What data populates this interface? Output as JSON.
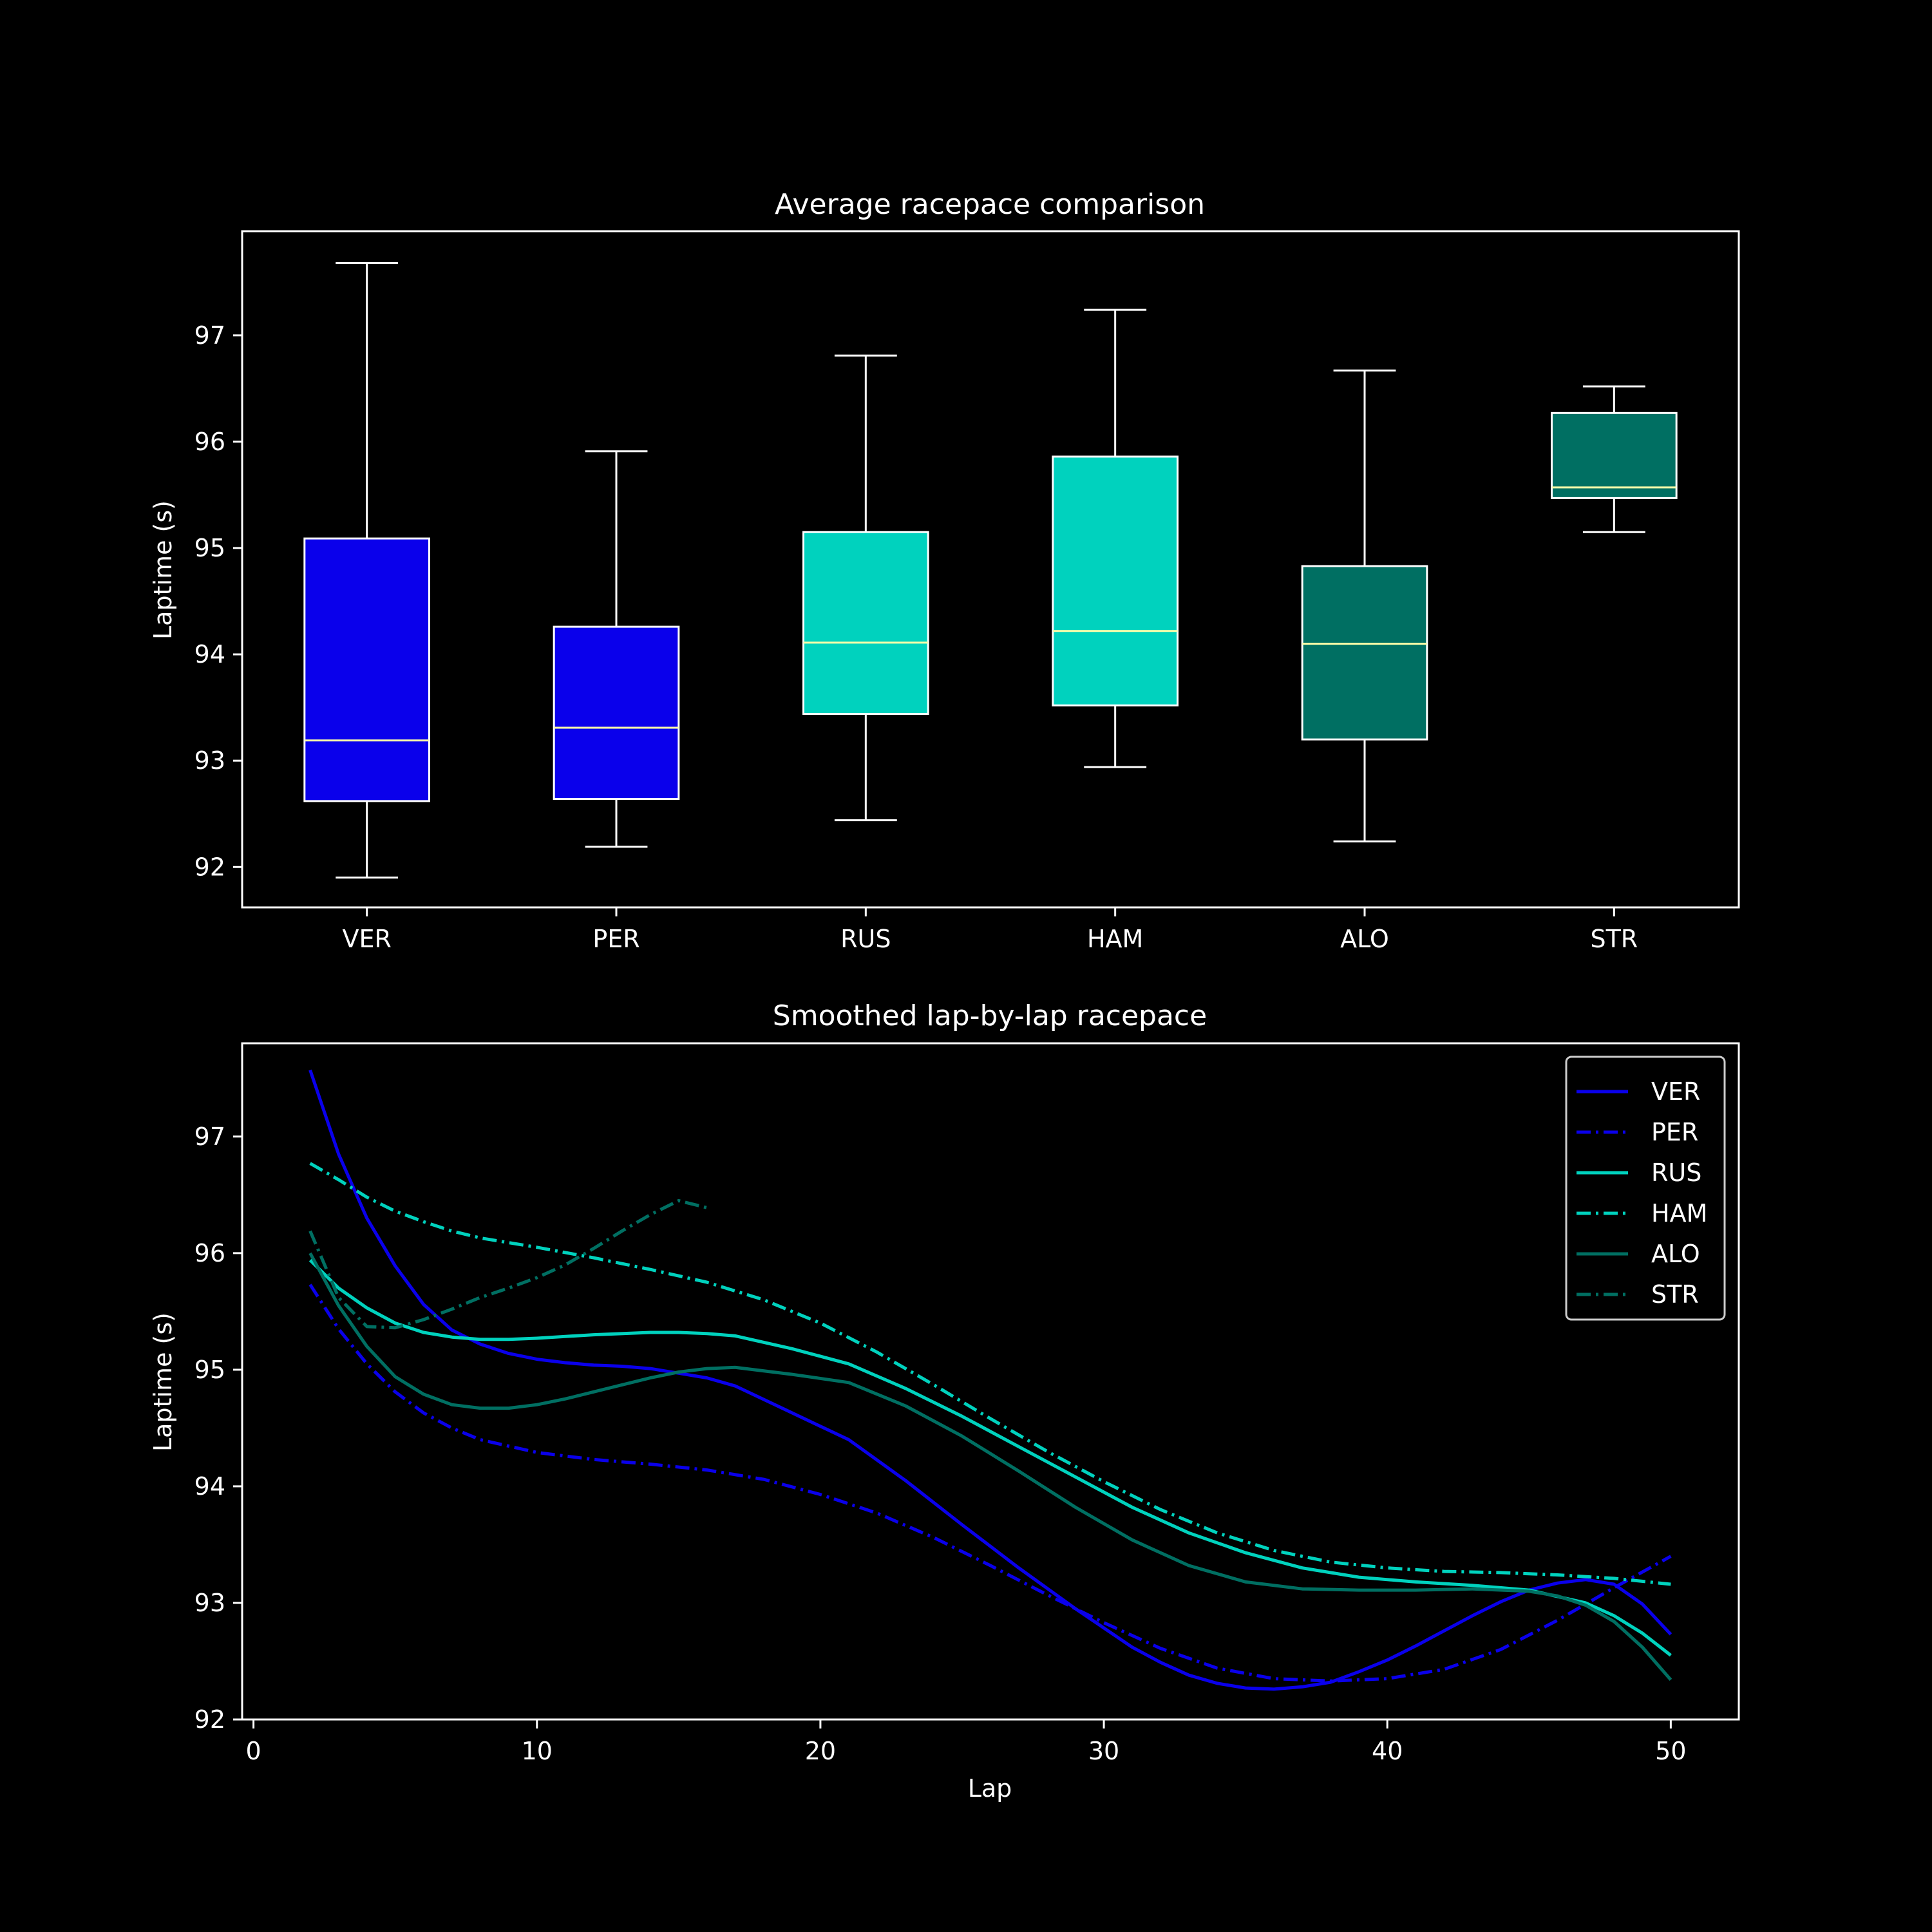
{
  "chart_data": [
    {
      "type": "box",
      "title": "Average racepace comparison",
      "xlabel": "",
      "ylabel": "Laptime (s)",
      "ylim": [
        91.62,
        97.98
      ],
      "yticks": [
        92,
        93,
        94,
        95,
        96,
        97
      ],
      "grid": false,
      "categories": [
        "VER",
        "PER",
        "RUS",
        "HAM",
        "ALO",
        "STR"
      ],
      "boxes": [
        {
          "name": "VER",
          "whisker_low": 91.9,
          "q1": 92.62,
          "median": 93.19,
          "q3": 95.09,
          "whisker_high": 97.68,
          "color": "#0a00eb"
        },
        {
          "name": "PER",
          "whisker_low": 92.19,
          "q1": 92.64,
          "median": 93.31,
          "q3": 94.26,
          "whisker_high": 95.91,
          "color": "#0a00eb"
        },
        {
          "name": "RUS",
          "whisker_low": 92.44,
          "q1": 93.44,
          "median": 94.11,
          "q3": 95.15,
          "whisker_high": 96.81,
          "color": "#00d2be"
        },
        {
          "name": "HAM",
          "whisker_low": 92.94,
          "q1": 93.52,
          "median": 94.22,
          "q3": 95.86,
          "whisker_high": 97.24,
          "color": "#00d2be"
        },
        {
          "name": "ALO",
          "whisker_low": 92.24,
          "q1": 93.2,
          "median": 94.1,
          "q3": 94.83,
          "whisker_high": 96.67,
          "color": "#006f62"
        },
        {
          "name": "STR",
          "whisker_low": 95.15,
          "q1": 95.47,
          "median": 95.57,
          "q3": 96.27,
          "whisker_high": 96.52,
          "color": "#006f62"
        }
      ],
      "box_edge_color": "#ffffff",
      "median_color": "#ffffaa"
    },
    {
      "type": "line",
      "title": "Smoothed lap-by-lap racepace",
      "xlabel": "Lap",
      "ylabel": "Laptime (s)",
      "xlim": [
        -0.4,
        52.4
      ],
      "ylim": [
        92.0,
        97.8
      ],
      "xticks": [
        0,
        10,
        20,
        30,
        40,
        50
      ],
      "yticks": [
        92,
        93,
        94,
        95,
        96,
        97
      ],
      "grid": false,
      "legend": "top-right",
      "series": [
        {
          "name": "VER",
          "color": "#0a00eb",
          "style": "solid",
          "x": [
            2,
            3,
            4,
            5,
            6,
            7,
            8,
            9,
            10,
            11,
            12,
            13,
            14,
            15,
            16,
            17,
            19,
            21,
            23,
            25,
            27,
            29,
            31,
            32,
            33,
            34,
            35,
            36,
            37,
            38,
            39,
            40,
            41,
            42,
            43,
            44,
            45,
            46,
            47,
            48,
            49,
            50
          ],
          "y": [
            97.57,
            96.85,
            96.3,
            95.89,
            95.56,
            95.34,
            95.22,
            95.14,
            95.09,
            95.06,
            95.04,
            95.03,
            95.01,
            94.97,
            94.93,
            94.86,
            94.63,
            94.4,
            94.05,
            93.67,
            93.3,
            92.95,
            92.62,
            92.49,
            92.38,
            92.31,
            92.27,
            92.26,
            92.28,
            92.32,
            92.41,
            92.51,
            92.63,
            92.76,
            92.89,
            93.01,
            93.11,
            93.17,
            93.2,
            93.16,
            92.99,
            92.73
          ]
        },
        {
          "name": "PER",
          "color": "#0a00eb",
          "style": "dashdot",
          "x": [
            2,
            3,
            4,
            5,
            6,
            7,
            8,
            10,
            12,
            14,
            16,
            18,
            20,
            22,
            24,
            26,
            28,
            30,
            32,
            34,
            36,
            38,
            40,
            42,
            44,
            46,
            48,
            50
          ],
          "y": [
            95.73,
            95.35,
            95.05,
            94.81,
            94.63,
            94.5,
            94.4,
            94.29,
            94.23,
            94.19,
            94.14,
            94.06,
            93.93,
            93.77,
            93.56,
            93.32,
            93.07,
            92.83,
            92.61,
            92.44,
            92.35,
            92.33,
            92.35,
            92.43,
            92.6,
            92.85,
            93.13,
            93.4
          ]
        },
        {
          "name": "RUS",
          "color": "#00d2be",
          "style": "solid",
          "x": [
            2,
            3,
            4,
            5,
            6,
            7,
            8,
            9,
            10,
            12,
            14,
            15,
            16,
            17,
            19,
            21,
            23,
            25,
            27,
            29,
            31,
            33,
            35,
            37,
            39,
            41,
            43,
            45,
            47,
            48,
            49,
            50
          ],
          "y": [
            95.94,
            95.7,
            95.53,
            95.4,
            95.32,
            95.28,
            95.26,
            95.26,
            95.27,
            95.3,
            95.32,
            95.32,
            95.31,
            95.29,
            95.18,
            95.05,
            94.84,
            94.6,
            94.34,
            94.08,
            93.82,
            93.6,
            93.43,
            93.3,
            93.22,
            93.18,
            93.15,
            93.11,
            93.0,
            92.89,
            92.74,
            92.55
          ]
        },
        {
          "name": "HAM",
          "color": "#00d2be",
          "style": "dashdot",
          "x": [
            2,
            3,
            4,
            5,
            6,
            7,
            8,
            10,
            12,
            14,
            16,
            18,
            20,
            22,
            24,
            26,
            28,
            30,
            32,
            34,
            36,
            38,
            40,
            42,
            44,
            46,
            48,
            50
          ],
          "y": [
            96.77,
            96.63,
            96.48,
            96.36,
            96.27,
            96.19,
            96.13,
            96.05,
            95.96,
            95.86,
            95.75,
            95.6,
            95.4,
            95.15,
            94.87,
            94.58,
            94.3,
            94.04,
            93.8,
            93.6,
            93.45,
            93.35,
            93.3,
            93.27,
            93.26,
            93.24,
            93.21,
            93.16
          ]
        },
        {
          "name": "ALO",
          "color": "#006f62",
          "style": "solid",
          "x": [
            2,
            3,
            4,
            5,
            6,
            7,
            8,
            9,
            10,
            11,
            12,
            13,
            14,
            15,
            16,
            17,
            19,
            21,
            23,
            25,
            27,
            29,
            31,
            33,
            35,
            37,
            39,
            41,
            43,
            45,
            46,
            47,
            48,
            49,
            50
          ],
          "y": [
            96.0,
            95.55,
            95.2,
            94.94,
            94.79,
            94.7,
            94.67,
            94.67,
            94.7,
            94.75,
            94.81,
            94.87,
            94.93,
            94.98,
            95.01,
            95.02,
            94.96,
            94.89,
            94.69,
            94.43,
            94.13,
            93.82,
            93.54,
            93.32,
            93.18,
            93.12,
            93.11,
            93.11,
            93.12,
            93.1,
            93.06,
            92.98,
            92.84,
            92.62,
            92.34
          ]
        },
        {
          "name": "STR",
          "color": "#006f62",
          "style": "dashdot",
          "x": [
            2,
            3,
            4,
            5,
            6,
            7,
            8,
            9,
            10,
            11,
            12,
            13,
            14,
            15,
            16
          ],
          "y": [
            96.19,
            95.62,
            95.37,
            95.36,
            95.43,
            95.52,
            95.62,
            95.7,
            95.79,
            95.9,
            96.04,
            96.19,
            96.33,
            96.45,
            96.39
          ]
        }
      ]
    }
  ]
}
